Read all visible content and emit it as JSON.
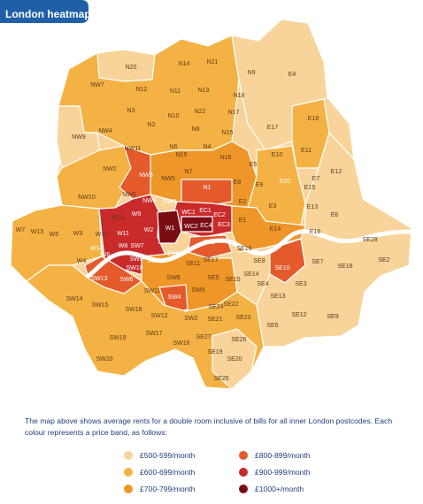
{
  "title": "London heatmap",
  "description": "The map above shows average rents for a double room inclusive of bills for all inner London postcodes. Each colour represents a price band, as follows:",
  "colors": {
    "band_500": "#f8d49a",
    "band_600": "#f4b244",
    "band_700": "#ee9627",
    "band_800": "#e55a2b",
    "band_900": "#c92a2a",
    "band_1000": "#7a0c14",
    "title_bg": "#1f5fa8",
    "river": "#ffffff"
  },
  "legend": [
    {
      "label": "£500-599/month",
      "color": "#f8d49a"
    },
    {
      "label": "£800-899/month",
      "color": "#e55a2b"
    },
    {
      "label": "£600-699/month",
      "color": "#f4b244"
    },
    {
      "label": "£900-999/month",
      "color": "#c92a2a"
    },
    {
      "label": "£700-799/month",
      "color": "#ee9627"
    },
    {
      "label": "£1000+/month",
      "color": "#7a0c14"
    }
  ],
  "postcodes": [
    {
      "code": "N20",
      "band": "band_500"
    },
    {
      "code": "N14",
      "band": "band_600"
    },
    {
      "code": "N21",
      "band": "band_500"
    },
    {
      "code": "N9",
      "band": "band_500"
    },
    {
      "code": "E4",
      "band": "band_500"
    },
    {
      "code": "NW7",
      "band": "band_600"
    },
    {
      "code": "N12",
      "band": "band_600"
    },
    {
      "code": "N11",
      "band": "band_600"
    },
    {
      "code": "N13",
      "band": "band_600"
    },
    {
      "code": "N18",
      "band": "band_500"
    },
    {
      "code": "N3",
      "band": "band_600"
    },
    {
      "code": "N22",
      "band": "band_600"
    },
    {
      "code": "N17",
      "band": "band_500"
    },
    {
      "code": "N10",
      "band": "band_600"
    },
    {
      "code": "NW4",
      "band": "band_600"
    },
    {
      "code": "N2",
      "band": "band_600"
    },
    {
      "code": "N8",
      "band": "band_600"
    },
    {
      "code": "N15",
      "band": "band_600"
    },
    {
      "code": "E17",
      "band": "band_500"
    },
    {
      "code": "E18",
      "band": "band_600"
    },
    {
      "code": "NW9",
      "band": "band_500"
    },
    {
      "code": "N6",
      "band": "band_700"
    },
    {
      "code": "N4",
      "band": "band_700"
    },
    {
      "code": "N16",
      "band": "band_700"
    },
    {
      "code": "E10",
      "band": "band_500"
    },
    {
      "code": "E11",
      "band": "band_600"
    },
    {
      "code": "NW11",
      "band": "band_600"
    },
    {
      "code": "N19",
      "band": "band_700"
    },
    {
      "code": "E5",
      "band": "band_600"
    },
    {
      "code": "NW2",
      "band": "band_600"
    },
    {
      "code": "NW3",
      "band": "band_800"
    },
    {
      "code": "NW5",
      "band": "band_700"
    },
    {
      "code": "N7",
      "band": "band_700"
    },
    {
      "code": "E8",
      "band": "band_700"
    },
    {
      "code": "E9",
      "band": "band_700"
    },
    {
      "code": "E7",
      "band": "band_500"
    },
    {
      "code": "E12",
      "band": "band_500"
    },
    {
      "code": "NW10",
      "band": "band_600"
    },
    {
      "code": "NW6",
      "band": "band_700"
    },
    {
      "code": "NW8",
      "band": "band_800"
    },
    {
      "code": "NW1",
      "band": "band_800"
    },
    {
      "code": "N1",
      "band": "band_800"
    },
    {
      "code": "E20",
      "band": "band_800"
    },
    {
      "code": "E15",
      "band": "band_600"
    },
    {
      "code": "E2",
      "band": "band_700"
    },
    {
      "code": "E3",
      "band": "band_600"
    },
    {
      "code": "E13",
      "band": "band_500"
    },
    {
      "code": "E6",
      "band": "band_500"
    },
    {
      "code": "W10",
      "band": "band_700"
    },
    {
      "code": "W9",
      "band": "band_900"
    },
    {
      "code": "W2",
      "band": "band_900"
    },
    {
      "code": "W1",
      "band": "band_1000"
    },
    {
      "code": "WC1",
      "band": "band_900"
    },
    {
      "code": "EC1",
      "band": "band_900"
    },
    {
      "code": "EC2",
      "band": "band_900"
    },
    {
      "code": "WC2",
      "band": "band_1000"
    },
    {
      "code": "EC4",
      "band": "band_1000"
    },
    {
      "code": "EC3",
      "band": "band_900"
    },
    {
      "code": "E1",
      "band": "band_700"
    },
    {
      "code": "E14",
      "band": "band_700"
    },
    {
      "code": "E16",
      "band": "band_600"
    },
    {
      "code": "W7",
      "band": "band_600"
    },
    {
      "code": "W13",
      "band": "band_600"
    },
    {
      "code": "W5",
      "band": "band_600"
    },
    {
      "code": "W3",
      "band": "band_600"
    },
    {
      "code": "W12",
      "band": "band_700"
    },
    {
      "code": "W11",
      "band": "band_900"
    },
    {
      "code": "W14",
      "band": "band_900"
    },
    {
      "code": "W8",
      "band": "band_900"
    },
    {
      "code": "SW7",
      "band": "band_900"
    },
    {
      "code": "SW3",
      "band": "band_900"
    },
    {
      "code": "SW1",
      "band": "band_900"
    },
    {
      "code": "SE1",
      "band": "band_800"
    },
    {
      "code": "SE16",
      "band": "band_700"
    },
    {
      "code": "SE28",
      "band": "band_500"
    },
    {
      "code": "W4",
      "band": "band_600"
    },
    {
      "code": "W6",
      "band": "band_900"
    },
    {
      "code": "SW5",
      "band": "band_900"
    },
    {
      "code": "SW10",
      "band": "band_900"
    },
    {
      "code": "SW6",
      "band": "band_800"
    },
    {
      "code": "SE11",
      "band": "band_700"
    },
    {
      "code": "SE17",
      "band": "band_700"
    },
    {
      "code": "SE8",
      "band": "band_600"
    },
    {
      "code": "SE10",
      "band": "band_800"
    },
    {
      "code": "SE7",
      "band": "band_500"
    },
    {
      "code": "SE18",
      "band": "band_500"
    },
    {
      "code": "SE2",
      "band": "band_500"
    },
    {
      "code": "SW13",
      "band": "band_800"
    },
    {
      "code": "SW8",
      "band": "band_700"
    },
    {
      "code": "SE5",
      "band": "band_600"
    },
    {
      "code": "SE15",
      "band": "band_600"
    },
    {
      "code": "SE14",
      "band": "band_600"
    },
    {
      "code": "SE4",
      "band": "band_600"
    },
    {
      "code": "SE3",
      "band": "band_600"
    },
    {
      "code": "SW14",
      "band": "band_600"
    },
    {
      "code": "SW11",
      "band": "band_700"
    },
    {
      "code": "SW4",
      "band": "band_800"
    },
    {
      "code": "SE24",
      "band": "band_600"
    },
    {
      "code": "SE22",
      "band": "band_600"
    },
    {
      "code": "SE13",
      "band": "band_600"
    },
    {
      "code": "SE12",
      "band": "band_500"
    },
    {
      "code": "SE9",
      "band": "band_500"
    },
    {
      "code": "SW15",
      "band": "band_600"
    },
    {
      "code": "SW18",
      "band": "band_600"
    },
    {
      "code": "SW12",
      "band": "band_600"
    },
    {
      "code": "SW2",
      "band": "band_600"
    },
    {
      "code": "SW9",
      "band": "band_700"
    },
    {
      "code": "SE23",
      "band": "band_600"
    },
    {
      "code": "SE6",
      "band": "band_500"
    },
    {
      "code": "SW19",
      "band": "band_600"
    },
    {
      "code": "SW17",
      "band": "band_600"
    },
    {
      "code": "SE21",
      "band": "band_600"
    },
    {
      "code": "SE27",
      "band": "band_600"
    },
    {
      "code": "SE26",
      "band": "band_500"
    },
    {
      "code": "SW20",
      "band": "band_600"
    },
    {
      "code": "SW16",
      "band": "band_600"
    },
    {
      "code": "SE19",
      "band": "band_500"
    },
    {
      "code": "SE20",
      "band": "band_500"
    },
    {
      "code": "SE25",
      "band": "band_500"
    }
  ]
}
